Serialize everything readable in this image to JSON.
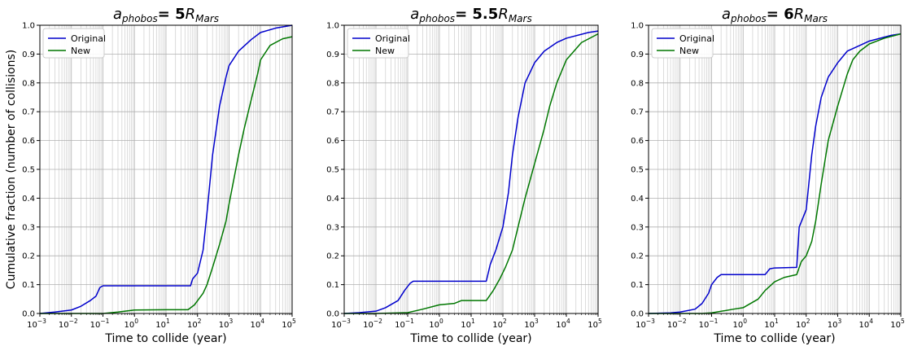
{
  "figure": {
    "ylabel": "Cumulative fraction (number of collisions)"
  },
  "chart_data": [
    {
      "type": "line",
      "title": {
        "sub_a": "phobos",
        "value": "= 5",
        "sub_r": "Mars"
      },
      "xlabel": "Time to collide (year)",
      "ylabel": "Cumulative fraction (number of collisions)",
      "xscale": "log",
      "xlim": [
        0.001,
        100000
      ],
      "ylim": [
        0,
        1
      ],
      "grid": true,
      "legend": {
        "position": "top-left",
        "entries": [
          "Original",
          "New"
        ]
      },
      "yticks": [
        "0.0",
        "0.1",
        "0.2",
        "0.3",
        "0.4",
        "0.5",
        "0.6",
        "0.7",
        "0.8",
        "0.9",
        "1.0"
      ],
      "xticks": [
        {
          "base": "10",
          "exp": "−3"
        },
        {
          "base": "10",
          "exp": "−2"
        },
        {
          "base": "10",
          "exp": "−1"
        },
        {
          "base": "10",
          "exp": "0"
        },
        {
          "base": "10",
          "exp": "1"
        },
        {
          "base": "10",
          "exp": "2"
        },
        {
          "base": "10",
          "exp": "3"
        },
        {
          "base": "10",
          "exp": "4"
        },
        {
          "base": "10",
          "exp": "5"
        }
      ],
      "series": [
        {
          "name": "Original",
          "color": "#0000cc",
          "points": [
            [
              0.001,
              0
            ],
            [
              0.003,
              0.005
            ],
            [
              0.01,
              0.012
            ],
            [
              0.02,
              0.025
            ],
            [
              0.04,
              0.045
            ],
            [
              0.06,
              0.06
            ],
            [
              0.08,
              0.09
            ],
            [
              0.1,
              0.096
            ],
            [
              0.3,
              0.096
            ],
            [
              1,
              0.096
            ],
            [
              10,
              0.096
            ],
            [
              60,
              0.096
            ],
            [
              70,
              0.12
            ],
            [
              100,
              0.14
            ],
            [
              150,
              0.22
            ],
            [
              200,
              0.35
            ],
            [
              300,
              0.55
            ],
            [
              500,
              0.72
            ],
            [
              800,
              0.82
            ],
            [
              1000,
              0.86
            ],
            [
              2000,
              0.91
            ],
            [
              5000,
              0.95
            ],
            [
              10000,
              0.975
            ],
            [
              30000,
              0.99
            ],
            [
              100000,
              1.0
            ]
          ]
        },
        {
          "name": "New",
          "color": "#007700",
          "points": [
            [
              0.001,
              0
            ],
            [
              0.1,
              0
            ],
            [
              0.3,
              0.005
            ],
            [
              1,
              0.012
            ],
            [
              10,
              0.013
            ],
            [
              50,
              0.013
            ],
            [
              80,
              0.03
            ],
            [
              150,
              0.07
            ],
            [
              200,
              0.1
            ],
            [
              300,
              0.16
            ],
            [
              500,
              0.24
            ],
            [
              800,
              0.32
            ],
            [
              1000,
              0.38
            ],
            [
              2000,
              0.55
            ],
            [
              3000,
              0.64
            ],
            [
              5000,
              0.74
            ],
            [
              8000,
              0.83
            ],
            [
              10000,
              0.88
            ],
            [
              20000,
              0.93
            ],
            [
              50000,
              0.953
            ],
            [
              100000,
              0.96
            ]
          ]
        }
      ]
    },
    {
      "type": "line",
      "title": {
        "sub_a": "phobos",
        "value": "= 5.5",
        "sub_r": "Mars"
      },
      "xlabel": "Time to collide (year)",
      "ylabel": "",
      "xscale": "log",
      "xlim": [
        0.001,
        100000
      ],
      "ylim": [
        0,
        1
      ],
      "grid": true,
      "legend": {
        "position": "top-left",
        "entries": [
          "Original",
          "New"
        ]
      },
      "yticks": [
        "0.0",
        "0.1",
        "0.2",
        "0.3",
        "0.4",
        "0.5",
        "0.6",
        "0.7",
        "0.8",
        "0.9",
        "1.0"
      ],
      "xticks": [
        {
          "base": "10",
          "exp": "−3"
        },
        {
          "base": "10",
          "exp": "−2"
        },
        {
          "base": "10",
          "exp": "−1"
        },
        {
          "base": "10",
          "exp": "0"
        },
        {
          "base": "10",
          "exp": "1"
        },
        {
          "base": "10",
          "exp": "2"
        },
        {
          "base": "10",
          "exp": "3"
        },
        {
          "base": "10",
          "exp": "4"
        },
        {
          "base": "10",
          "exp": "5"
        }
      ],
      "series": [
        {
          "name": "Original",
          "color": "#0000cc",
          "points": [
            [
              0.001,
              0
            ],
            [
              0.003,
              0.003
            ],
            [
              0.01,
              0.008
            ],
            [
              0.02,
              0.02
            ],
            [
              0.05,
              0.045
            ],
            [
              0.08,
              0.08
            ],
            [
              0.12,
              0.105
            ],
            [
              0.15,
              0.112
            ],
            [
              1,
              0.112
            ],
            [
              10,
              0.112
            ],
            [
              30,
              0.112
            ],
            [
              40,
              0.17
            ],
            [
              60,
              0.22
            ],
            [
              100,
              0.3
            ],
            [
              150,
              0.42
            ],
            [
              200,
              0.55
            ],
            [
              300,
              0.68
            ],
            [
              500,
              0.8
            ],
            [
              1000,
              0.87
            ],
            [
              2000,
              0.91
            ],
            [
              5000,
              0.94
            ],
            [
              10000,
              0.955
            ],
            [
              50000,
              0.975
            ],
            [
              100000,
              0.98
            ]
          ]
        },
        {
          "name": "New",
          "color": "#007700",
          "points": [
            [
              0.001,
              0
            ],
            [
              0.01,
              0
            ],
            [
              0.1,
              0.003
            ],
            [
              0.3,
              0.015
            ],
            [
              1,
              0.03
            ],
            [
              3,
              0.035
            ],
            [
              5,
              0.045
            ],
            [
              10,
              0.045
            ],
            [
              30,
              0.045
            ],
            [
              50,
              0.08
            ],
            [
              80,
              0.12
            ],
            [
              120,
              0.16
            ],
            [
              200,
              0.22
            ],
            [
              300,
              0.3
            ],
            [
              500,
              0.4
            ],
            [
              1000,
              0.52
            ],
            [
              2000,
              0.64
            ],
            [
              3000,
              0.72
            ],
            [
              5000,
              0.8
            ],
            [
              10000,
              0.88
            ],
            [
              30000,
              0.94
            ],
            [
              100000,
              0.97
            ]
          ]
        }
      ]
    },
    {
      "type": "line",
      "title": {
        "sub_a": "phobos",
        "value": "= 6",
        "sub_r": "Mars"
      },
      "xlabel": "Time to collide (year)",
      "ylabel": "",
      "xscale": "log",
      "xlim": [
        0.001,
        100000
      ],
      "ylim": [
        0,
        1
      ],
      "grid": true,
      "legend": {
        "position": "top-left",
        "entries": [
          "Original",
          "New"
        ]
      },
      "yticks": [
        "0.0",
        "0.1",
        "0.2",
        "0.3",
        "0.4",
        "0.5",
        "0.6",
        "0.7",
        "0.8",
        "0.9",
        "1.0"
      ],
      "xticks": [
        {
          "base": "10",
          "exp": "−3"
        },
        {
          "base": "10",
          "exp": "−2"
        },
        {
          "base": "10",
          "exp": "−1"
        },
        {
          "base": "10",
          "exp": "0"
        },
        {
          "base": "10",
          "exp": "1"
        },
        {
          "base": "10",
          "exp": "2"
        },
        {
          "base": "10",
          "exp": "3"
        },
        {
          "base": "10",
          "exp": "4"
        },
        {
          "base": "10",
          "exp": "5"
        }
      ],
      "series": [
        {
          "name": "Original",
          "color": "#0000cc",
          "points": [
            [
              0.001,
              0
            ],
            [
              0.005,
              0.002
            ],
            [
              0.01,
              0.005
            ],
            [
              0.03,
              0.015
            ],
            [
              0.05,
              0.035
            ],
            [
              0.08,
              0.07
            ],
            [
              0.1,
              0.1
            ],
            [
              0.15,
              0.125
            ],
            [
              0.2,
              0.135
            ],
            [
              1,
              0.135
            ],
            [
              5,
              0.135
            ],
            [
              7,
              0.155
            ],
            [
              10,
              0.158
            ],
            [
              50,
              0.16
            ],
            [
              60,
              0.3
            ],
            [
              100,
              0.36
            ],
            [
              150,
              0.55
            ],
            [
              200,
              0.65
            ],
            [
              300,
              0.75
            ],
            [
              500,
              0.82
            ],
            [
              1000,
              0.87
            ],
            [
              2000,
              0.91
            ],
            [
              5000,
              0.93
            ],
            [
              10000,
              0.945
            ],
            [
              50000,
              0.965
            ],
            [
              100000,
              0.97
            ]
          ]
        },
        {
          "name": "New",
          "color": "#007700",
          "points": [
            [
              0.001,
              0
            ],
            [
              0.05,
              0
            ],
            [
              0.1,
              0.002
            ],
            [
              0.5,
              0.015
            ],
            [
              1,
              0.02
            ],
            [
              3,
              0.05
            ],
            [
              5,
              0.08
            ],
            [
              10,
              0.11
            ],
            [
              20,
              0.125
            ],
            [
              50,
              0.135
            ],
            [
              70,
              0.18
            ],
            [
              100,
              0.2
            ],
            [
              150,
              0.25
            ],
            [
              200,
              0.32
            ],
            [
              300,
              0.45
            ],
            [
              500,
              0.6
            ],
            [
              1000,
              0.72
            ],
            [
              2000,
              0.83
            ],
            [
              3000,
              0.88
            ],
            [
              5000,
              0.91
            ],
            [
              10000,
              0.935
            ],
            [
              30000,
              0.955
            ],
            [
              100000,
              0.97
            ]
          ]
        }
      ]
    }
  ]
}
